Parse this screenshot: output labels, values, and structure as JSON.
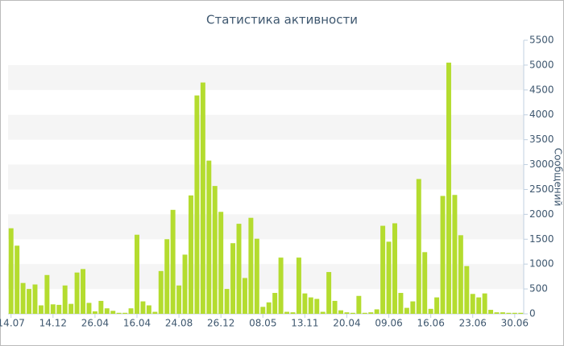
{
  "chart_data": {
    "type": "bar",
    "title": "Статистика активности",
    "y_label": "Сообщений",
    "categories": [
      "14.07",
      null,
      null,
      null,
      null,
      null,
      null,
      "14.12",
      null,
      null,
      null,
      null,
      null,
      null,
      "26.04",
      null,
      null,
      null,
      null,
      null,
      null,
      "16.04",
      null,
      null,
      null,
      null,
      null,
      null,
      "24.08",
      null,
      null,
      null,
      null,
      null,
      null,
      "26.12",
      null,
      null,
      null,
      null,
      null,
      null,
      "08.05",
      null,
      null,
      null,
      null,
      null,
      null,
      "13.11",
      null,
      null,
      null,
      null,
      null,
      null,
      "20.04",
      null,
      null,
      null,
      null,
      null,
      null,
      "09.06",
      null,
      null,
      null,
      null,
      null,
      null,
      "16.06",
      null,
      null,
      null,
      null,
      null,
      null,
      "23.06",
      null,
      null,
      null,
      null,
      null,
      null,
      "30.06",
      null
    ],
    "values": [
      1720,
      1370,
      620,
      500,
      590,
      170,
      780,
      190,
      180,
      570,
      200,
      830,
      900,
      220,
      50,
      260,
      110,
      60,
      20,
      20,
      110,
      1590,
      250,
      170,
      40,
      860,
      1500,
      2090,
      570,
      1190,
      2380,
      4390,
      4650,
      3080,
      2570,
      2050,
      500,
      1420,
      1810,
      720,
      1930,
      1510,
      140,
      230,
      420,
      1130,
      40,
      30,
      1130,
      410,
      330,
      300,
      40,
      840,
      260,
      70,
      30,
      20,
      360,
      20,
      30,
      90,
      1770,
      1450,
      1820,
      420,
      120,
      250,
      2710,
      1240,
      100,
      330,
      2370,
      5050,
      2390,
      1580,
      960,
      400,
      330,
      410,
      80,
      30,
      30,
      20,
      20,
      20
    ],
    "color": "#b4dc2f",
    "ylim": [
      0,
      5500
    ],
    "yticks": [
      0,
      500,
      1000,
      1500,
      2000,
      2500,
      3000,
      3500,
      4000,
      4500,
      5000,
      5500
    ],
    "grid": true
  }
}
